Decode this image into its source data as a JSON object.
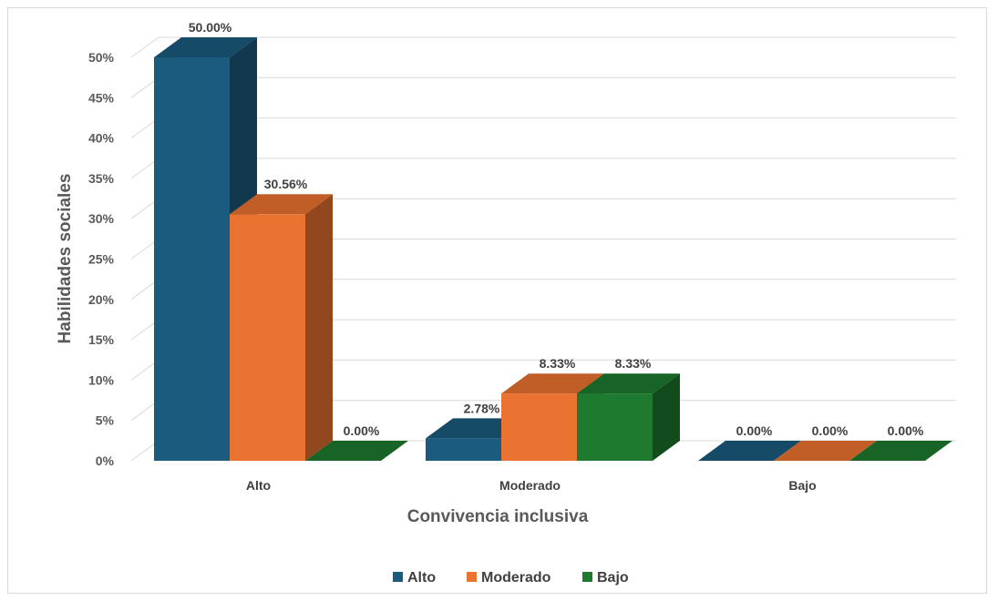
{
  "chart_data": {
    "type": "bar",
    "variant": "3d-clustered-column",
    "categories": [
      "Alto",
      "Moderado",
      "Bajo"
    ],
    "series": [
      {
        "name": "Alto",
        "values": [
          50.0,
          2.78,
          0.0
        ],
        "labels": [
          "50.00%",
          "2.78%",
          "0.00%"
        ],
        "color": "#1b5b7e"
      },
      {
        "name": "Moderado",
        "values": [
          30.56,
          8.33,
          0.0
        ],
        "labels": [
          "30.56%",
          "8.33%",
          "0.00%"
        ],
        "color": "#eb7331"
      },
      {
        "name": "Bajo",
        "values": [
          0.0,
          8.33,
          0.0
        ],
        "labels": [
          "0.00%",
          "8.33%",
          "0.00%"
        ],
        "color": "#1d7a2e"
      }
    ],
    "yticks": [
      "0%",
      "5%",
      "10%",
      "15%",
      "20%",
      "25%",
      "30%",
      "35%",
      "40%",
      "45%",
      "50%"
    ],
    "ylim": [
      0,
      50
    ],
    "xlabel": "Convivencia inclusiva",
    "ylabel": "Habilidades sociales",
    "legend_position": "bottom",
    "grid": true
  }
}
